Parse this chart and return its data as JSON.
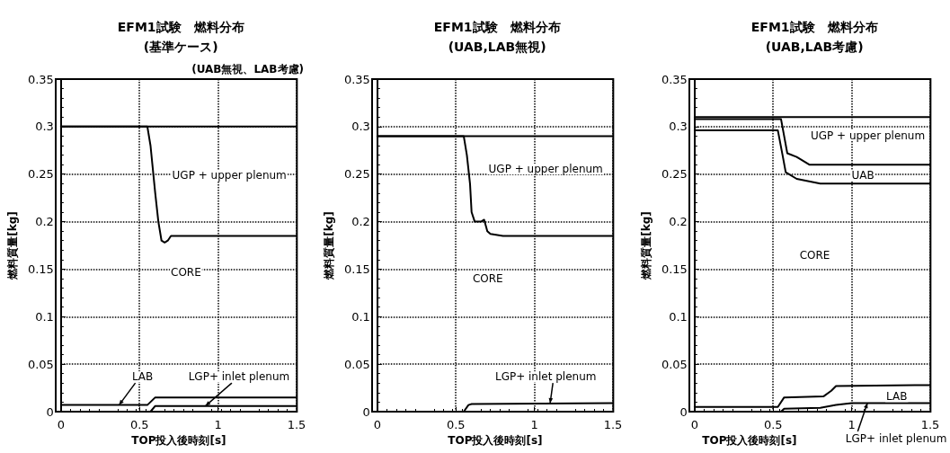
{
  "chart_data": [
    {
      "type": "line",
      "title": "EFM1試験　燃料分布",
      "subtitle": "(基準ケース)",
      "xlabel": "TOP投入後時刻[s]",
      "ylabel": "燃料質量[kg]",
      "xlim": [
        0,
        1.5
      ],
      "xticks": [
        0,
        0.5,
        1,
        1.5
      ],
      "ylim": [
        0,
        0.35
      ],
      "yticks": [
        0,
        0.05,
        0.1,
        0.15,
        0.2,
        0.25,
        0.3,
        0.35
      ],
      "grid": true,
      "marker": "none",
      "line_style": "solid",
      "series": [
        {
          "color": "#000000",
          "x": [
            0,
            1.5
          ],
          "values": [
            0.3,
            0.3
          ]
        },
        {
          "color": "#000000",
          "x": [
            0,
            0.55,
            0.57,
            0.6,
            0.62,
            0.64,
            0.66,
            0.68,
            0.7,
            1.5
          ],
          "values": [
            0.3,
            0.3,
            0.28,
            0.23,
            0.2,
            0.18,
            0.178,
            0.18,
            0.185,
            0.185
          ]
        },
        {
          "color": "#000000",
          "x": [
            0,
            0.55,
            0.6,
            1.5
          ],
          "values": [
            0.007,
            0.007,
            0.015,
            0.015
          ]
        },
        {
          "color": "#000000",
          "x": [
            0,
            0.57,
            0.6,
            1.5
          ],
          "values": [
            0,
            0,
            0.006,
            0.006
          ]
        }
      ],
      "annotations": [
        "(UAB無視、LAB考慮)",
        "UGP + upper plenum",
        "CORE",
        {
          "text": "LAB",
          "x": 0.37,
          "y": 0.007
        },
        {
          "text": "LGP+ inlet plenum",
          "x": 0.92,
          "y": 0.006
        }
      ]
    },
    {
      "type": "line",
      "title": "EFM1試験　燃料分布",
      "subtitle": "(UAB,LAB無視)",
      "xlabel": "TOP投入後時刻[s]",
      "ylabel": "燃料質量[kg]",
      "xlim": [
        0,
        1.5
      ],
      "xticks": [
        0,
        0.5,
        1,
        1.5
      ],
      "ylim": [
        0,
        0.35
      ],
      "yticks": [
        0,
        0.05,
        0.1,
        0.15,
        0.2,
        0.25,
        0.3,
        0.35
      ],
      "grid": true,
      "marker": "none",
      "line_style": "solid",
      "series": [
        {
          "color": "#000000",
          "x": [
            0,
            1.5
          ],
          "values": [
            0.29,
            0.29
          ]
        },
        {
          "color": "#000000",
          "x": [
            0,
            0.55,
            0.57,
            0.59,
            0.6,
            0.62,
            0.66,
            0.68,
            0.7,
            0.72,
            0.8,
            1.5
          ],
          "values": [
            0.29,
            0.29,
            0.27,
            0.24,
            0.21,
            0.2,
            0.2,
            0.202,
            0.19,
            0.187,
            0.185,
            0.185
          ]
        },
        {
          "color": "#000000",
          "x": [
            0,
            0.55,
            0.58,
            0.6,
            1.5
          ],
          "values": [
            0,
            0,
            0.007,
            0.008,
            0.009
          ]
        }
      ],
      "annotations": [
        "UGP + upper plenum",
        "CORE",
        {
          "text": "LGP+ inlet plenum",
          "x": 1.1,
          "y": 0.009
        }
      ]
    },
    {
      "type": "line",
      "title": "EFM1試験　燃料分布",
      "subtitle": "(UAB,LAB考慮)",
      "xlabel": "TOP投入後時刻[s]",
      "ylabel": "燃料質量[kg]",
      "xlim": [
        0,
        1.5
      ],
      "xticks": [
        0,
        0.5,
        1,
        1.5
      ],
      "ylim": [
        0,
        0.35
      ],
      "yticks": [
        0,
        0.05,
        0.1,
        0.15,
        0.2,
        0.25,
        0.3,
        0.35
      ],
      "grid": true,
      "marker": "none",
      "line_style": "solid",
      "series": [
        {
          "color": "#000000",
          "x": [
            0,
            1.5
          ],
          "values": [
            0.31,
            0.31
          ]
        },
        {
          "color": "#000000",
          "x": [
            0,
            0.55,
            0.57,
            0.59,
            0.65,
            0.73,
            1.5
          ],
          "values": [
            0.308,
            0.308,
            0.29,
            0.272,
            0.268,
            0.26,
            0.26
          ]
        },
        {
          "color": "#000000",
          "x": [
            0,
            0.53,
            0.56,
            0.58,
            0.65,
            0.8,
            1.5
          ],
          "values": [
            0.296,
            0.296,
            0.27,
            0.252,
            0.245,
            0.24,
            0.24
          ]
        },
        {
          "color": "#000000",
          "x": [
            0,
            0.53,
            0.57,
            0.82,
            0.87,
            0.9,
            1.5
          ],
          "values": [
            0.005,
            0.005,
            0.015,
            0.016,
            0.022,
            0.027,
            0.028
          ]
        },
        {
          "color": "#000000",
          "x": [
            0,
            0.55,
            0.57,
            0.8,
            0.9,
            1.0,
            1.5
          ],
          "values": [
            0,
            0,
            0.003,
            0.004,
            0.007,
            0.009,
            0.009
          ]
        }
      ],
      "annotations": [
        "UGP + upper plenum",
        "UAB",
        "CORE",
        "LAB",
        {
          "text": "LGP+ inlet plenum",
          "x": 1.1,
          "y": 0.009
        }
      ]
    }
  ]
}
